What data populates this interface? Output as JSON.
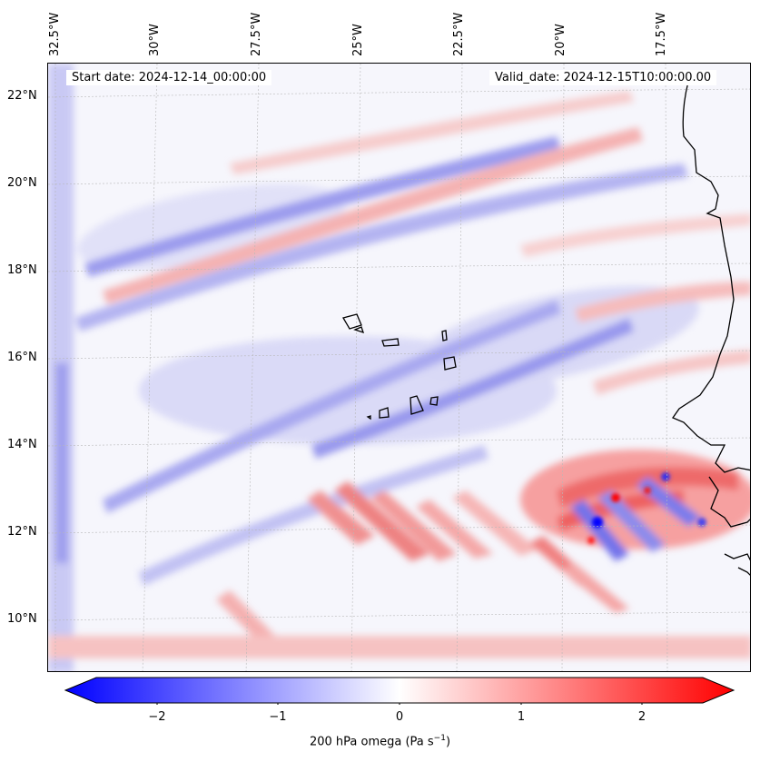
{
  "header": {
    "start_date": "Start date: 2024-12-14_00:00:00",
    "valid_date": "Valid_date: 2024-12-15T10:00:00.00"
  },
  "axes": {
    "lon_labels": [
      "32.5°W",
      "30°W",
      "27.5°W",
      "25°W",
      "22.5°W",
      "20°W",
      "17.5°W"
    ],
    "lat_labels": [
      "22°N",
      "20°N",
      "18°N",
      "16°N",
      "14°N",
      "12°N",
      "10°N"
    ]
  },
  "colorbar": {
    "ticks": [
      "−2",
      "−1",
      "0",
      "1",
      "2"
    ],
    "label": "200 hPa omega (Pa s",
    "label_exp": "−1",
    "label_end": ")",
    "range": [
      -2.5,
      2.5
    ],
    "colors": {
      "min": "#0000ff",
      "mid": "#ffffff",
      "max": "#ff0000"
    }
  },
  "map": {
    "variable": "omega",
    "level": "200 hPa",
    "coastline_color": "#000000",
    "grid": true
  }
}
